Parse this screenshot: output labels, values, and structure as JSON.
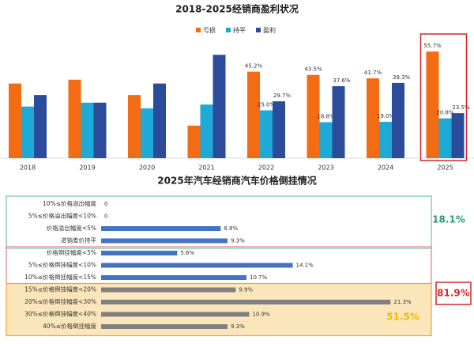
{
  "chart_data": [
    {
      "type": "bar",
      "title": "2018-2025经销商盈利状况",
      "categories": [
        "2018",
        "2019",
        "2020",
        "2021",
        "2022",
        "2023",
        "2024",
        "2025"
      ],
      "series": [
        {
          "name": "亏损",
          "color": "#f36b12",
          "values": [
            39,
            41,
            33,
            17,
            45.2,
            43.5,
            41.7,
            55.7
          ],
          "value_labels": [
            null,
            null,
            null,
            null,
            "45.2%",
            "43.5%",
            "41.7%",
            "55.7%"
          ]
        },
        {
          "name": "持平",
          "color": "#1fa9d6",
          "values": [
            27,
            29,
            26,
            28,
            25.0,
            18.8,
            19.0,
            20.8
          ],
          "value_labels": [
            null,
            null,
            null,
            null,
            "25.0%",
            "18.8%",
            "19.0%",
            "20.8%"
          ]
        },
        {
          "name": "盈利",
          "color": "#2b4b9b",
          "values": [
            33,
            29,
            39,
            54,
            29.7,
            37.6,
            39.3,
            23.5
          ],
          "value_labels": [
            null,
            null,
            null,
            null,
            "29.7%",
            "37.6%",
            "39.3%",
            "23.5%"
          ]
        }
      ]
    },
    {
      "type": "hbar",
      "title": "2025年汽车经销商汽车价格倒挂情况",
      "categories": [
        "10%≤价格溢出幅度",
        "5%≤价格溢出幅度<10%",
        "价格溢出幅度<5%",
        "进销差价持平",
        "价格倒挂幅度<5%",
        "5%≤价格倒挂幅度<10%",
        "10%≤价格倒挂幅度<15%",
        "15%≤价格倒挂幅度<20%",
        "20%≤价格倒挂幅度<30%",
        "30%≤价格倒挂幅度<40%",
        "40%≤价格倒挂幅度"
      ],
      "values": [
        0,
        0,
        8.8,
        9.3,
        5.6,
        14.1,
        10.7,
        9.9,
        21.3,
        10.9,
        9.3
      ],
      "value_labels": [
        "0",
        "0",
        "8.8%",
        "9.3%",
        "5.6%",
        "14.1%",
        "10.7%",
        "9.9%",
        "21.3%",
        "10.9%",
        "9.3%"
      ],
      "colors": [
        "#4472c4",
        "#4472c4",
        "#4472c4",
        "#4472c4",
        "#4472c4",
        "#4472c4",
        "#4472c4",
        "#7f7f7f",
        "#7f7f7f",
        "#7f7f7f",
        "#7f7f7f"
      ],
      "annotations": [
        "18.1%",
        "81.9%",
        "51.5%"
      ]
    }
  ]
}
